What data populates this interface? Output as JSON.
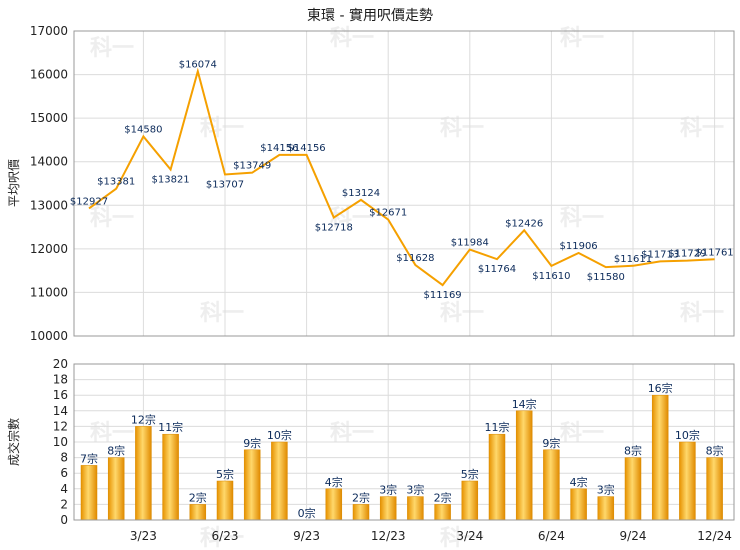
{
  "chart_data": [
    {
      "type": "line",
      "title": "東環 - 實用呎價走勢",
      "ylabel": "平均呎價",
      "ylim": [
        10000,
        17000
      ],
      "yticks": [
        10000,
        11000,
        12000,
        13000,
        14000,
        15000,
        16000,
        17000
      ],
      "grid": true,
      "color": "#f5a000",
      "series": [
        {
          "values": [
            12927,
            13381,
            14580,
            13821,
            16074,
            13707,
            13749,
            14156,
            14156,
            12718,
            13124,
            12671,
            11628,
            11169,
            11984,
            11764,
            12426,
            11610,
            11906,
            11580,
            11611,
            11713,
            11729,
            11761
          ],
          "labels": [
            "$12927",
            "$13381",
            "$14580",
            "$13821",
            "$16074",
            "$13707",
            "$13749",
            "$14156",
            "$14156",
            "$12718",
            "$13124",
            "$12671",
            "$11628",
            "$11169",
            "$11984",
            "$11764",
            "$12426",
            "$11610",
            "$11906",
            "$11580",
            "$11611",
            "$11713",
            "$11729",
            "$11761"
          ]
        }
      ]
    },
    {
      "type": "bar",
      "ylabel": "成交宗數",
      "ylim": [
        0,
        20
      ],
      "yticks": [
        0,
        2,
        4,
        6,
        8,
        10,
        12,
        14,
        16,
        18,
        20
      ],
      "categories": [
        "",
        "",
        "3/23",
        "",
        "",
        "6/23",
        "",
        "",
        "9/23",
        "",
        "",
        "12/23",
        "",
        "",
        "3/24",
        "",
        "",
        "6/24",
        "",
        "",
        "9/24",
        "",
        "",
        "12/24"
      ],
      "grid": true,
      "color": "#f5a623",
      "series": [
        {
          "values": [
            7,
            8,
            12,
            11,
            2,
            5,
            9,
            10,
            0,
            4,
            2,
            3,
            3,
            2,
            5,
            11,
            14,
            9,
            4,
            3,
            8,
            16,
            10,
            8
          ],
          "labels": [
            "7宗",
            "8宗",
            "12宗",
            "11宗",
            "2宗",
            "5宗",
            "9宗",
            "10宗",
            "0宗",
            "4宗",
            "2宗",
            "3宗",
            "3宗",
            "2宗",
            "5宗",
            "11宗",
            "14宗",
            "9宗",
            "4宗",
            "3宗",
            "8宗",
            "16宗",
            "10宗",
            "8宗"
          ]
        }
      ]
    }
  ],
  "watermark": "科一"
}
